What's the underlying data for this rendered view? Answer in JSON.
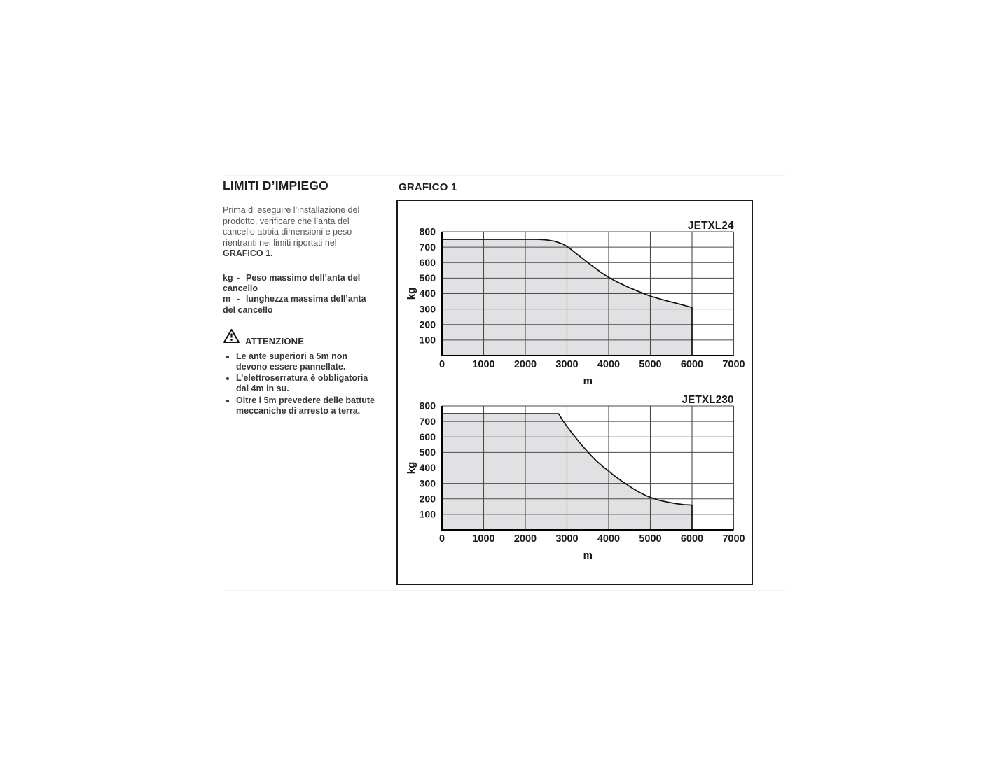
{
  "page": {
    "section_title": "LIMITI D’IMPIEGO",
    "intro": {
      "text": "Prima di eseguire l’installazione del prodotto, verificare che l’anta del cancello abbia dimensioni e peso rientranti nei limiti riportati nel",
      "bold_ref": "GRAFICO 1."
    },
    "legend": [
      {
        "term": "kg",
        "dash": "-",
        "desc": "Peso massimo dell’anta del cancello"
      },
      {
        "term": "m",
        "dash": "-",
        "desc": "lunghezza massima dell’anta del cancello"
      }
    ],
    "warning": {
      "title": "ATTENZIONE",
      "items": [
        "Le ante superiori a 5m non devono essere pannellate.",
        "L’elettroserratura è obbligatoria dai 4m in su.",
        "Oltre i 5m prevedere delle battute meccaniche di arresto a terra."
      ]
    },
    "figure_title": "GRAFICO 1"
  },
  "colors": {
    "area_fill": "#e1e1e3",
    "grid_line": "#4a4a4a",
    "axis_line": "#000000",
    "curve_line": "#111111",
    "box_border": "#1a1a1a",
    "tick_text": "#1a1a1a"
  },
  "chart_data": [
    {
      "type": "area",
      "title": "JETXL24",
      "xlabel": "m",
      "ylabel": "kg",
      "xlim": [
        0,
        7000
      ],
      "ylim": [
        0,
        800
      ],
      "x_ticks": [
        0,
        1000,
        2000,
        3000,
        4000,
        5000,
        6000,
        7000
      ],
      "y_ticks": [
        100,
        200,
        300,
        400,
        500,
        600,
        700,
        800
      ],
      "grid": true,
      "legend_position": "top-right",
      "area_end_x": 6000,
      "curve": [
        [
          0,
          750
        ],
        [
          2300,
          750
        ],
        [
          2500,
          747
        ],
        [
          2700,
          738
        ],
        [
          2900,
          720
        ],
        [
          3000,
          705
        ],
        [
          3100,
          685
        ],
        [
          3200,
          663
        ],
        [
          3300,
          642
        ],
        [
          3400,
          621
        ],
        [
          3500,
          600
        ],
        [
          3600,
          580
        ],
        [
          3700,
          560
        ],
        [
          3800,
          540
        ],
        [
          3900,
          522
        ],
        [
          4000,
          505
        ],
        [
          4100,
          490
        ],
        [
          4200,
          476
        ],
        [
          4300,
          463
        ],
        [
          4400,
          450
        ],
        [
          4500,
          438
        ],
        [
          4600,
          427
        ],
        [
          4700,
          416
        ],
        [
          4800,
          405
        ],
        [
          4900,
          394
        ],
        [
          5000,
          384
        ],
        [
          5200,
          368
        ],
        [
          5400,
          353
        ],
        [
          5600,
          339
        ],
        [
          5800,
          325
        ],
        [
          6000,
          310
        ]
      ]
    },
    {
      "type": "area",
      "title": "JETXL230",
      "xlabel": "m",
      "ylabel": "kg",
      "xlim": [
        0,
        7000
      ],
      "ylim": [
        0,
        800
      ],
      "x_ticks": [
        0,
        1000,
        2000,
        3000,
        4000,
        5000,
        6000,
        7000
      ],
      "y_ticks": [
        100,
        200,
        300,
        400,
        500,
        600,
        700,
        800
      ],
      "grid": true,
      "legend_position": "top-right",
      "area_end_x": 6000,
      "curve": [
        [
          0,
          750
        ],
        [
          2800,
          750
        ],
        [
          2900,
          705
        ],
        [
          3000,
          668
        ],
        [
          3100,
          632
        ],
        [
          3200,
          598
        ],
        [
          3300,
          565
        ],
        [
          3400,
          533
        ],
        [
          3500,
          503
        ],
        [
          3600,
          474
        ],
        [
          3700,
          447
        ],
        [
          3800,
          423
        ],
        [
          3900,
          400
        ],
        [
          4000,
          380
        ],
        [
          4100,
          357
        ],
        [
          4200,
          337
        ],
        [
          4300,
          317
        ],
        [
          4400,
          299
        ],
        [
          4500,
          281
        ],
        [
          4600,
          264
        ],
        [
          4700,
          248
        ],
        [
          4800,
          234
        ],
        [
          4900,
          221
        ],
        [
          5000,
          210
        ],
        [
          5200,
          192
        ],
        [
          5400,
          180
        ],
        [
          5600,
          170
        ],
        [
          5800,
          163
        ],
        [
          6000,
          160
        ]
      ]
    }
  ]
}
